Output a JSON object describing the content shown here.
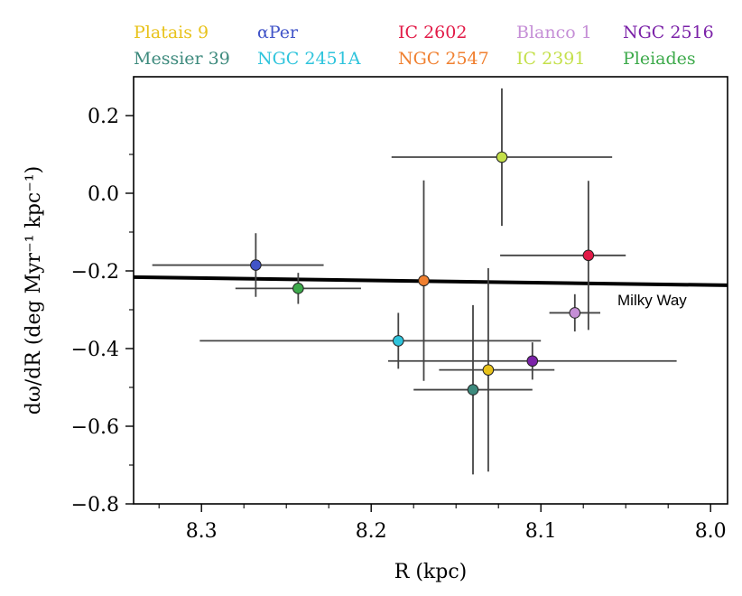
{
  "chart_data": {
    "type": "scatter",
    "xlabel": "R (kpc)",
    "ylabel": "dω/dR (deg Myr⁻¹ kpc⁻¹)",
    "xlim": [
      8.34,
      7.99
    ],
    "ylim": [
      -0.8,
      0.3
    ],
    "x_reversed": true,
    "x_ticks": [
      "8.3",
      "8.2",
      "8.1",
      "8.0"
    ],
    "y_ticks": [
      "0.2",
      "0.0",
      "−0.2",
      "−0.4",
      "−0.6",
      "−0.8"
    ],
    "grid": false,
    "legend_placement": "above plot, two rows",
    "series": [
      {
        "name": "Platais 9",
        "color": "#e8c21a",
        "x": 8.131,
        "y": -0.455,
        "xerr": [
          0.029,
          0.039
        ],
        "yerr": [
          0.262,
          0.262
        ]
      },
      {
        "name": "αPer",
        "color": "#4154c8",
        "x": 8.268,
        "y": -0.185,
        "xerr": [
          0.061,
          0.04
        ],
        "yerr": [
          0.082,
          0.082
        ]
      },
      {
        "name": "IC 2602",
        "color": "#e21a47",
        "x": 8.072,
        "y": -0.16,
        "xerr": [
          0.052,
          0.022
        ],
        "yerr": [
          0.192,
          0.192
        ]
      },
      {
        "name": "Blanco 1",
        "color": "#c58ed6",
        "x": 8.08,
        "y": -0.308,
        "xerr": [
          0.015,
          0.015
        ],
        "yerr": [
          0.048,
          0.048
        ]
      },
      {
        "name": "NGC 2516",
        "color": "#7b22a8",
        "x": 8.105,
        "y": -0.432,
        "xerr": [
          0.085,
          0.085
        ],
        "yerr": [
          0.048,
          0.048
        ]
      },
      {
        "name": "Messier 39",
        "color": "#3d8a7d",
        "x": 8.14,
        "y": -0.506,
        "xerr": [
          0.035,
          0.035
        ],
        "yerr": [
          0.218,
          0.218
        ]
      },
      {
        "name": "NGC 2451A",
        "color": "#2fc4dc",
        "x": 8.184,
        "y": -0.38,
        "xerr": [
          0.117,
          0.084
        ],
        "yerr": [
          0.072,
          0.072
        ]
      },
      {
        "name": "NGC 2547",
        "color": "#f08030",
        "x": 8.169,
        "y": -0.225,
        "xerr": [
          0.0,
          0.0
        ],
        "yerr": [
          0.258,
          0.258
        ]
      },
      {
        "name": "IC 2391",
        "color": "#c4e04a",
        "x": 8.123,
        "y": 0.093,
        "xerr": [
          0.065,
          0.065
        ],
        "yerr": [
          0.177,
          0.177
        ]
      },
      {
        "name": "Pleiades",
        "color": "#3daa4b",
        "x": 8.243,
        "y": -0.245,
        "xerr": [
          0.037,
          0.037
        ],
        "yerr": [
          0.04,
          0.04
        ]
      }
    ],
    "reference_line": {
      "label": "Milky Way",
      "x": [
        8.34,
        7.99
      ],
      "y": [
        -0.216,
        -0.237
      ]
    }
  },
  "legend_rows": [
    [
      "Platais 9",
      "αPer",
      "IC 2602",
      "Blanco 1",
      "NGC 2516"
    ],
    [
      "Messier 39",
      "NGC 2451A",
      "NGC 2547",
      "IC 2391",
      "Pleiades"
    ]
  ]
}
